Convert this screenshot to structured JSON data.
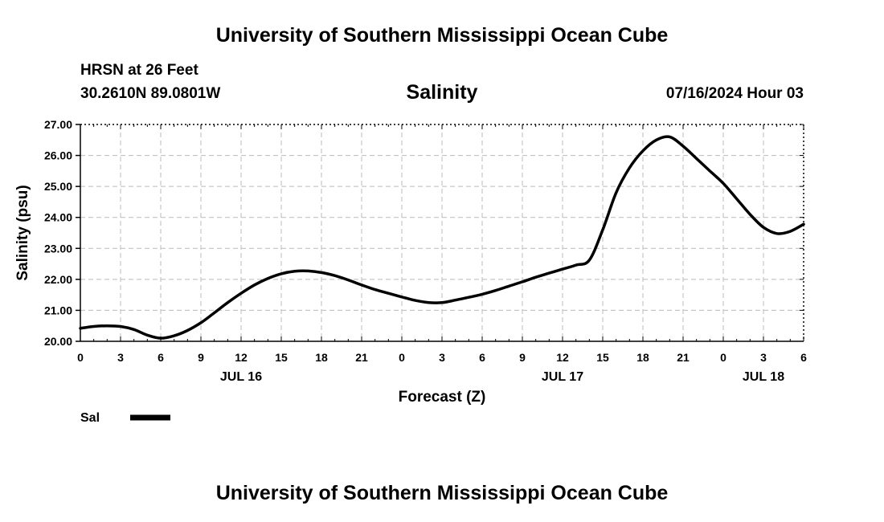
{
  "page_title": "University of Southern Mississippi Ocean Cube",
  "footer_title": "University of Southern Mississippi Ocean Cube",
  "station": {
    "name_depth": "HRSN at 26 Feet",
    "coords": "30.2610N  89.0801W"
  },
  "forecast_time": "07/16/2024 Hour 03",
  "legend": {
    "label": "Sal",
    "color": "#000000"
  },
  "chart_data": {
    "type": "line",
    "title": "Salinity",
    "xlabel": "Forecast (Z)",
    "ylabel": "Salinity (psu)",
    "xlim": [
      0,
      54
    ],
    "ylim": [
      20,
      27
    ],
    "x_tick_values": [
      0,
      3,
      6,
      9,
      12,
      15,
      18,
      21,
      24,
      27,
      30,
      33,
      36,
      39,
      42,
      45,
      48,
      51,
      54
    ],
    "x_tick_labels": [
      "0",
      "3",
      "6",
      "9",
      "12",
      "15",
      "18",
      "21",
      "0",
      "3",
      "6",
      "9",
      "12",
      "15",
      "18",
      "21",
      "0",
      "3",
      "6"
    ],
    "y_tick_values": [
      20,
      21,
      22,
      23,
      24,
      25,
      26,
      27
    ],
    "y_tick_labels": [
      "20.00",
      "21.00",
      "22.00",
      "23.00",
      "24.00",
      "25.00",
      "26.00",
      "27.00"
    ],
    "day_labels": [
      {
        "x": 12,
        "label": "JUL 16"
      },
      {
        "x": 36,
        "label": "JUL 17"
      },
      {
        "x": 51,
        "label": "JUL 18"
      }
    ],
    "grid": true,
    "series": [
      {
        "name": "Sal",
        "color": "#000000",
        "x": [
          0,
          1,
          2,
          3,
          4,
          5,
          6,
          7,
          8,
          9,
          10,
          11,
          12,
          13,
          14,
          15,
          16,
          17,
          18,
          19,
          20,
          21,
          22,
          23,
          24,
          25,
          26,
          27,
          28,
          29,
          30,
          31,
          32,
          33,
          34,
          35,
          36,
          37,
          38,
          39,
          40,
          41,
          42,
          43,
          44,
          45,
          46,
          47,
          48,
          49,
          50,
          51,
          52,
          53,
          54
        ],
        "y": [
          20.42,
          20.48,
          20.5,
          20.48,
          20.38,
          20.2,
          20.1,
          20.18,
          20.35,
          20.6,
          20.92,
          21.25,
          21.55,
          21.82,
          22.03,
          22.18,
          22.26,
          22.27,
          22.22,
          22.12,
          21.98,
          21.82,
          21.67,
          21.55,
          21.43,
          21.32,
          21.25,
          21.25,
          21.33,
          21.42,
          21.52,
          21.64,
          21.78,
          21.92,
          22.07,
          22.2,
          22.33,
          22.46,
          22.62,
          23.6,
          24.8,
          25.6,
          26.15,
          26.5,
          26.6,
          26.3,
          25.9,
          25.5,
          25.1,
          24.6,
          24.1,
          23.68,
          23.48,
          23.55,
          23.78
        ]
      }
    ]
  }
}
